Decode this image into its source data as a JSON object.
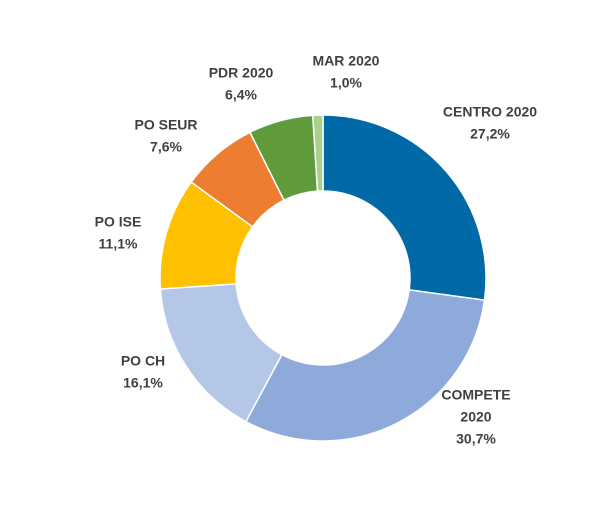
{
  "chart_data": {
    "type": "pie",
    "variant": "donut",
    "title": "",
    "legend": "none",
    "slices": [
      {
        "name": "CENTRO 2020",
        "label_lines": [
          "CENTRO 2020",
          "27,2%"
        ],
        "value": 27.2,
        "color": "#0069a6"
      },
      {
        "name": "COMPETE 2020",
        "label_lines": [
          "COMPETE",
          "2020",
          "30,7%"
        ],
        "value": 30.7,
        "color": "#8eaadb"
      },
      {
        "name": "PO CH",
        "label_lines": [
          "PO CH",
          "16,1%"
        ],
        "value": 16.1,
        "color": "#b4c7e7"
      },
      {
        "name": "PO ISE",
        "label_lines": [
          "PO ISE",
          "11,1%"
        ],
        "value": 11.1,
        "color": "#ffc000"
      },
      {
        "name": "PO SEUR",
        "label_lines": [
          "PO SEUR",
          "7,6%"
        ],
        "value": 7.6,
        "color": "#ed7d31"
      },
      {
        "name": "PDR 2020",
        "label_lines": [
          "PDR 2020",
          "6,4%"
        ],
        "value": 6.4,
        "color": "#5f9a3b"
      },
      {
        "name": "MAR 2020",
        "label_lines": [
          "MAR 2020",
          "1,0%"
        ],
        "value": 1.0,
        "color": "#a9d18e"
      }
    ]
  }
}
